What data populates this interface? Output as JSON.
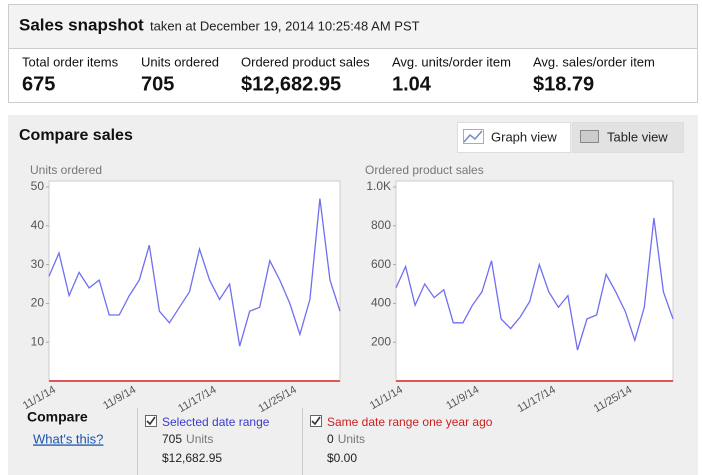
{
  "header": {
    "title": "Sales snapshot",
    "subtitle": "taken at December 19, 2014 10:25:48 AM PST"
  },
  "metrics": [
    {
      "label": "Total order items",
      "value": "675"
    },
    {
      "label": "Units ordered",
      "value": "705"
    },
    {
      "label": "Ordered product sales",
      "value": "$12,682.95"
    },
    {
      "label": "Avg. units/order item",
      "value": "1.04"
    },
    {
      "label": "Avg. sales/order item",
      "value": "$18.79"
    }
  ],
  "compare_panel": {
    "title": "Compare sales",
    "buttons": [
      "Graph view",
      "Table view"
    ]
  },
  "chart_data": [
    {
      "type": "line",
      "y_label": "Units ordered",
      "categories": [
        "11/1/14",
        null,
        null,
        null,
        null,
        null,
        null,
        null,
        "11/9/14",
        null,
        null,
        null,
        null,
        null,
        null,
        null,
        "11/17/14",
        null,
        null,
        null,
        null,
        null,
        null,
        null,
        "11/25/14",
        null,
        null,
        null,
        null,
        null
      ],
      "series": [
        {
          "name": "Selected date range",
          "color": "#6f6ff0",
          "values": [
            27,
            33,
            22,
            28,
            24,
            26,
            17,
            17,
            22,
            26,
            35,
            18,
            15,
            19,
            23,
            34,
            26,
            21,
            25,
            9,
            18,
            19,
            31,
            26,
            20,
            12,
            21,
            47,
            26,
            18
          ]
        },
        {
          "name": "Same date range one year ago",
          "color": "#e05555",
          "values": [
            0,
            0,
            0,
            0,
            0,
            0,
            0,
            0,
            0,
            0,
            0,
            0,
            0,
            0,
            0,
            0,
            0,
            0,
            0,
            0,
            0,
            0,
            0,
            0,
            0,
            0,
            0,
            0,
            0,
            0
          ]
        }
      ],
      "ylim": [
        0,
        50
      ],
      "yticks": [
        10,
        20,
        30,
        40,
        50
      ]
    },
    {
      "type": "line",
      "y_label": "Ordered product sales",
      "categories": [
        "11/1/14",
        null,
        null,
        null,
        null,
        null,
        null,
        null,
        "11/9/14",
        null,
        null,
        null,
        null,
        null,
        null,
        null,
        "11/17/14",
        null,
        null,
        null,
        null,
        null,
        null,
        null,
        "11/25/14",
        null,
        null,
        null,
        null,
        null
      ],
      "series": [
        {
          "color": "#6f6ff0",
          "values": [
            480,
            590,
            390,
            500,
            430,
            470,
            300,
            300,
            390,
            460,
            620,
            320,
            270,
            330,
            410,
            600,
            460,
            380,
            440,
            160,
            320,
            340,
            550,
            460,
            360,
            210,
            380,
            840,
            460,
            320
          ]
        },
        {
          "color": "#e05555",
          "values": [
            0,
            0,
            0,
            0,
            0,
            0,
            0,
            0,
            0,
            0,
            0,
            0,
            0,
            0,
            0,
            0,
            0,
            0,
            0,
            0,
            0,
            0,
            0,
            0,
            0,
            0,
            0,
            0,
            0,
            0
          ]
        }
      ],
      "ylim": [
        0,
        1000
      ],
      "yticks": [
        200,
        400,
        600,
        800,
        {
          "value": 1000,
          "label": "1.0K"
        }
      ]
    }
  ],
  "compare": {
    "title": "Compare",
    "link": "What's this?",
    "ranges": [
      {
        "units": "705",
        "units_label": "Units",
        "sales": "$12,682.95"
      },
      {
        "units": "0",
        "units_label": "Units",
        "sales": "$0.00"
      }
    ]
  }
}
